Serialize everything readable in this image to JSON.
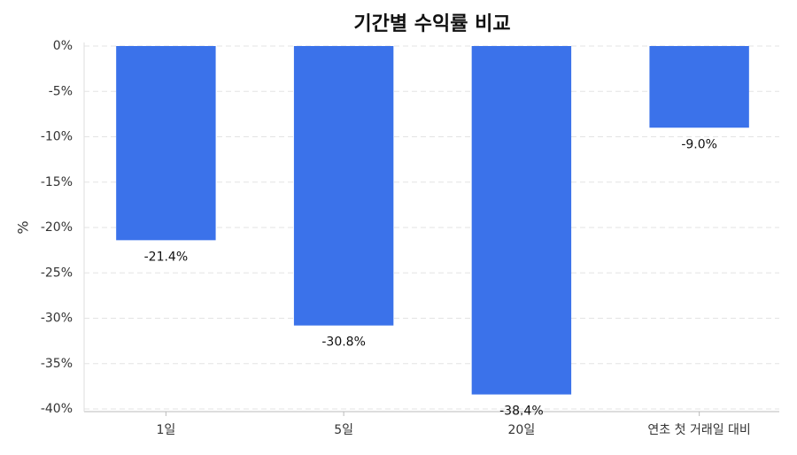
{
  "chart_data": {
    "type": "bar",
    "title": "기간별 수익률 비교",
    "ylabel": "%",
    "categories": [
      "1일",
      "5일",
      "20일",
      "연초 첫 거래일 대비"
    ],
    "values": [
      -21.4,
      -30.8,
      -38.4,
      -9.0
    ],
    "value_labels": [
      "-21.4%",
      "-30.8%",
      "-38.4%",
      "-9.0%"
    ],
    "color": "#3b72ea",
    "ylim": [
      -40,
      0
    ],
    "yticks": [
      {
        "value": 0,
        "label": "0%"
      },
      {
        "value": -5,
        "label": "-5%"
      },
      {
        "value": -10,
        "label": "-10%"
      },
      {
        "value": -15,
        "label": "-15%"
      },
      {
        "value": -20,
        "label": "-20%"
      },
      {
        "value": -25,
        "label": "-25%"
      },
      {
        "value": -30,
        "label": "-30%"
      },
      {
        "value": -35,
        "label": "-35%"
      },
      {
        "value": -40,
        "label": "-40%"
      }
    ],
    "grid": true
  }
}
